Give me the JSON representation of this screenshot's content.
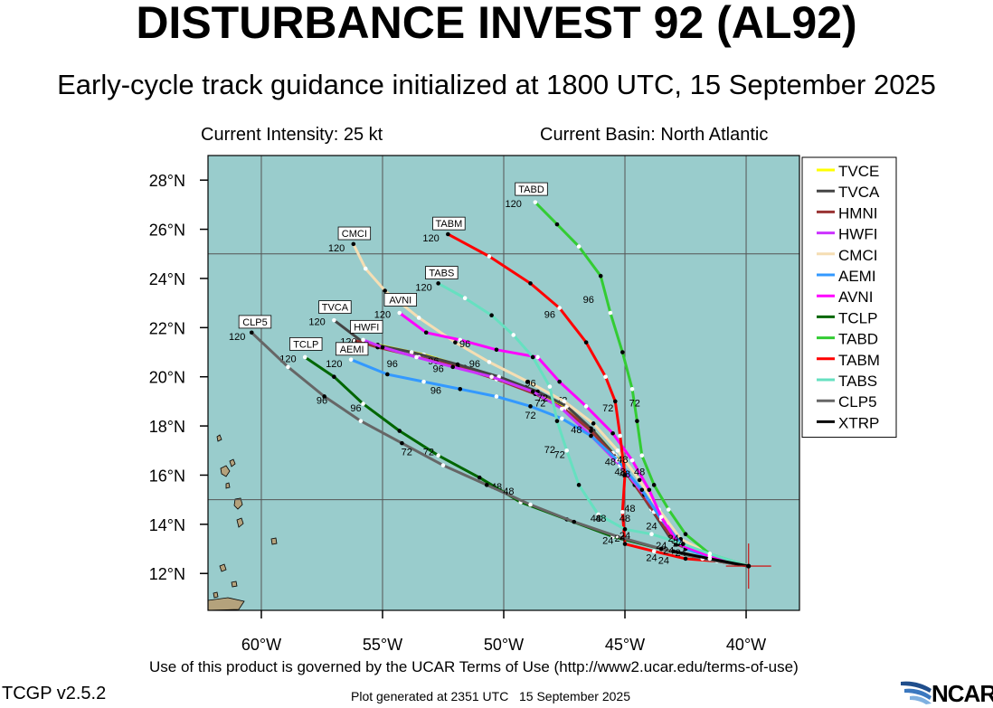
{
  "title": "DISTURBANCE INVEST 92 (AL92)",
  "subtitle": "Early-cycle track guidance initialized at 1800 UTC, 15 September 2025",
  "current_intensity": "Current Intensity: 25 kt",
  "current_basin": "Current Basin: North Atlantic",
  "terms": "Use of this product is governed by the UCAR Terms of Use (http://www2.ucar.edu/terms-of-use)",
  "version": "TCGP v2.5.2",
  "generated": "Plot generated at 2351 UTC   15 September 2025",
  "logo_text": "NCAR",
  "colors": {
    "ocean": "#99cccc",
    "land": "#b4a27c",
    "grid": "#555555",
    "initial_marker": "#cc2222"
  },
  "chart_data": {
    "type": "map-tracks",
    "lon_range": [
      -62.2,
      -37.8
    ],
    "lat_range": [
      10.5,
      29.0
    ],
    "xticks": [
      {
        "v": -60,
        "label": "60°W"
      },
      {
        "v": -55,
        "label": "55°W"
      },
      {
        "v": -50,
        "label": "50°W"
      },
      {
        "v": -45,
        "label": "45°W"
      },
      {
        "v": -40,
        "label": "40°W"
      }
    ],
    "yticks": [
      {
        "v": 12,
        "label": "12°N"
      },
      {
        "v": 14,
        "label": "14°N"
      },
      {
        "v": 16,
        "label": "16°N"
      },
      {
        "v": 18,
        "label": "18°N"
      },
      {
        "v": 20,
        "label": "20°N"
      },
      {
        "v": 22,
        "label": "22°N"
      },
      {
        "v": 24,
        "label": "24°N"
      },
      {
        "v": 26,
        "label": "26°N"
      },
      {
        "v": 28,
        "label": "28°N"
      }
    ],
    "grid_lons": [
      -60,
      -55,
      -50,
      -45,
      -40
    ],
    "grid_lats": [
      15,
      25
    ],
    "initial_position": {
      "lon": -39.9,
      "lat": 12.3
    },
    "legend_position": "top-right",
    "tracks": [
      {
        "name": "TVCE",
        "color": "#ffff00",
        "points": [
          [
            -39.9,
            12.3
          ],
          [
            -41.8,
            12.8
          ],
          [
            -43.0,
            13.3
          ],
          [
            -43.8,
            14.5
          ],
          [
            -44.6,
            15.7
          ],
          [
            -45.4,
            16.8
          ],
          [
            -46.3,
            17.8
          ],
          [
            -47.3,
            18.7
          ],
          [
            -48.4,
            19.2
          ],
          [
            -50.0,
            19.8
          ],
          [
            -51.6,
            20.4
          ],
          [
            -53.3,
            20.9
          ],
          [
            -55.2,
            21.3
          ],
          [
            -55.9,
            21.4
          ]
        ],
        "labels": [
          {
            "t": "72",
            "lon": -47.6,
            "lat": 18.9
          }
        ]
      },
      {
        "name": "TVCA",
        "color": "#444444",
        "points": [
          [
            -39.9,
            12.3
          ],
          [
            -41.9,
            12.9
          ],
          [
            -43.1,
            13.4
          ],
          [
            -43.9,
            14.6
          ],
          [
            -44.7,
            15.8
          ],
          [
            -45.5,
            16.9
          ],
          [
            -46.4,
            17.9
          ],
          [
            -47.4,
            18.8
          ],
          [
            -48.6,
            19.4
          ],
          [
            -50.2,
            20.0
          ],
          [
            -51.9,
            20.5
          ],
          [
            -53.8,
            21.0
          ],
          [
            -55.8,
            21.4
          ],
          [
            -57.0,
            22.3
          ]
        ],
        "labels": [
          {
            "t": "120",
            "lon": -57.7,
            "lat": 22.1,
            "box": "TVCA"
          }
        ]
      },
      {
        "name": "HMNI",
        "color": "#993333",
        "points": [
          [
            -39.9,
            12.3
          ],
          [
            -41.6,
            12.7
          ],
          [
            -42.9,
            13.2
          ],
          [
            -43.8,
            14.5
          ],
          [
            -44.6,
            15.6
          ],
          [
            -45.4,
            16.7
          ],
          [
            -46.4,
            17.8
          ],
          [
            -47.5,
            18.7
          ],
          [
            -48.7,
            19.3
          ],
          [
            -50.3,
            19.9
          ],
          [
            -51.9,
            20.4
          ],
          [
            -53.5,
            20.8
          ],
          [
            -55.2,
            21.2
          ],
          [
            -56.2,
            21.5
          ]
        ],
        "labels": [
          {
            "t": "96",
            "lon": -52.9,
            "lat": 20.5
          }
        ]
      },
      {
        "name": "HWFI",
        "color": "#cc33ff",
        "points": [
          [
            -39.9,
            12.3
          ],
          [
            -41.2,
            12.6
          ],
          [
            -42.4,
            13.0
          ],
          [
            -43.3,
            14.0
          ],
          [
            -44.2,
            15.2
          ],
          [
            -45.2,
            16.4
          ],
          [
            -46.4,
            17.6
          ],
          [
            -47.6,
            18.7
          ],
          [
            -48.8,
            19.4
          ],
          [
            -50.5,
            20.0
          ],
          [
            -52.1,
            20.4
          ],
          [
            -53.6,
            20.8
          ],
          [
            -55.0,
            21.2
          ],
          [
            -55.8,
            21.5
          ]
        ],
        "labels": [
          {
            "t": "120",
            "lon": -56.4,
            "lat": 21.3,
            "box": "HWFI"
          }
        ]
      },
      {
        "name": "CMCI",
        "color": "#f5deb3",
        "points": [
          [
            -39.9,
            12.3
          ],
          [
            -41.5,
            12.8
          ],
          [
            -42.7,
            13.4
          ],
          [
            -43.6,
            14.6
          ],
          [
            -44.4,
            15.8
          ],
          [
            -45.3,
            17.0
          ],
          [
            -46.3,
            18.1
          ],
          [
            -47.5,
            19.0
          ],
          [
            -49.0,
            19.8
          ],
          [
            -50.6,
            20.6
          ],
          [
            -52.0,
            21.4
          ],
          [
            -53.5,
            22.4
          ],
          [
            -54.9,
            23.5
          ],
          [
            -55.7,
            24.4
          ],
          [
            -56.2,
            25.4
          ]
        ],
        "labels": [
          {
            "t": "120",
            "lon": -56.9,
            "lat": 25.1,
            "box": "CMCI"
          }
        ]
      },
      {
        "name": "AEMI",
        "color": "#3399ff",
        "points": [
          [
            -39.9,
            12.3
          ],
          [
            -41.3,
            12.6
          ],
          [
            -42.5,
            13.0
          ],
          [
            -43.5,
            14.2
          ],
          [
            -44.3,
            15.4
          ],
          [
            -45.3,
            16.6
          ],
          [
            -46.4,
            17.6
          ],
          [
            -47.6,
            18.3
          ],
          [
            -48.9,
            18.8
          ],
          [
            -50.3,
            19.2
          ],
          [
            -51.8,
            19.5
          ],
          [
            -53.3,
            19.8
          ],
          [
            -54.8,
            20.1
          ],
          [
            -56.3,
            20.7
          ]
        ],
        "labels": [
          {
            "t": "120",
            "lon": -57.0,
            "lat": 20.4,
            "box": "AEMI"
          },
          {
            "t": "96",
            "lon": -52.8,
            "lat": 19.3
          }
        ]
      },
      {
        "name": "AVNI",
        "color": "#ff00ff",
        "points": [
          [
            -39.9,
            12.3
          ],
          [
            -41.5,
            12.7
          ],
          [
            -42.8,
            13.2
          ],
          [
            -43.5,
            14.3
          ],
          [
            -44.0,
            15.4
          ],
          [
            -44.7,
            16.6
          ],
          [
            -45.5,
            17.7
          ],
          [
            -46.6,
            18.8
          ],
          [
            -47.7,
            19.8
          ],
          [
            -48.6,
            20.8
          ],
          [
            -50.3,
            21.1
          ],
          [
            -51.8,
            21.5
          ],
          [
            -53.2,
            21.8
          ],
          [
            -54.3,
            22.6
          ]
        ],
        "labels": [
          {
            "t": "120",
            "lon": -55.0,
            "lat": 22.4,
            "box": "AVNI"
          },
          {
            "t": "96",
            "lon": -51.6,
            "lat": 21.2
          }
        ]
      },
      {
        "name": "TCLP",
        "color": "#006600",
        "points": [
          [
            -39.9,
            12.3
          ],
          [
            -41.8,
            12.6
          ],
          [
            -43.5,
            13.0
          ],
          [
            -45.5,
            13.5
          ],
          [
            -47.4,
            14.2
          ],
          [
            -49.3,
            14.9
          ],
          [
            -51.0,
            15.9
          ],
          [
            -52.7,
            16.8
          ],
          [
            -54.3,
            17.8
          ],
          [
            -55.8,
            18.9
          ],
          [
            -57.0,
            20.0
          ],
          [
            -58.2,
            20.8
          ]
        ],
        "labels": [
          {
            "t": "120",
            "lon": -58.9,
            "lat": 20.6,
            "box": "TCLP"
          },
          {
            "t": "96",
            "lon": -56.1,
            "lat": 18.6
          },
          {
            "t": "72",
            "lon": -53.1,
            "lat": 16.8
          },
          {
            "t": "48",
            "lon": -50.3,
            "lat": 15.4
          }
        ]
      },
      {
        "name": "TABD",
        "color": "#33cc33",
        "points": [
          [
            -39.9,
            12.3
          ],
          [
            -41.5,
            12.8
          ],
          [
            -42.5,
            13.6
          ],
          [
            -43.2,
            14.6
          ],
          [
            -43.8,
            15.6
          ],
          [
            -44.3,
            16.8
          ],
          [
            -44.5,
            18.2
          ],
          [
            -44.7,
            19.5
          ],
          [
            -45.1,
            21.0
          ],
          [
            -45.6,
            22.6
          ],
          [
            -46.0,
            24.1
          ],
          [
            -46.9,
            25.3
          ],
          [
            -47.8,
            26.2
          ],
          [
            -48.7,
            27.1
          ]
        ],
        "labels": [
          {
            "t": "120",
            "lon": -49.6,
            "lat": 26.9,
            "box": "TABD"
          },
          {
            "t": "96",
            "lon": -46.5,
            "lat": 23.0
          },
          {
            "t": "72",
            "lon": -44.6,
            "lat": 18.8
          }
        ]
      },
      {
        "name": "TABM",
        "color": "#ff0000",
        "points": [
          [
            -39.9,
            12.3
          ],
          [
            -41.2,
            12.5
          ],
          [
            -42.5,
            12.6
          ],
          [
            -43.8,
            12.9
          ],
          [
            -45.0,
            13.2
          ],
          [
            -45.1,
            14.5
          ],
          [
            -45.0,
            16.0
          ],
          [
            -45.2,
            17.6
          ],
          [
            -45.4,
            19.0
          ],
          [
            -45.8,
            20.0
          ],
          [
            -46.6,
            21.4
          ],
          [
            -47.7,
            22.8
          ],
          [
            -48.9,
            23.8
          ],
          [
            -50.6,
            24.9
          ],
          [
            -52.3,
            25.8
          ]
        ],
        "labels": [
          {
            "t": "120",
            "lon": -53.0,
            "lat": 25.5,
            "box": "TABM"
          },
          {
            "t": "96",
            "lon": -48.1,
            "lat": 22.4
          },
          {
            "t": "72",
            "lon": -45.7,
            "lat": 18.6
          }
        ]
      },
      {
        "name": "TABS",
        "color": "#66e0c0",
        "points": [
          [
            -39.9,
            12.3
          ],
          [
            -41.5,
            12.8
          ],
          [
            -42.6,
            13.2
          ],
          [
            -43.9,
            13.6
          ],
          [
            -45.0,
            13.8
          ],
          [
            -46.1,
            14.4
          ],
          [
            -46.9,
            15.6
          ],
          [
            -47.4,
            17.0
          ],
          [
            -47.8,
            18.2
          ],
          [
            -48.1,
            19.6
          ],
          [
            -48.8,
            20.8
          ],
          [
            -49.6,
            21.7
          ],
          [
            -50.5,
            22.5
          ],
          [
            -51.6,
            23.2
          ],
          [
            -52.7,
            23.8
          ]
        ],
        "labels": [
          {
            "t": "120",
            "lon": -53.3,
            "lat": 23.5,
            "box": "TABS"
          },
          {
            "t": "96",
            "lon": -51.2,
            "lat": 20.4
          },
          {
            "t": "72",
            "lon": -47.7,
            "lat": 16.7
          },
          {
            "t": "48",
            "lon": -46.2,
            "lat": 14.1
          }
        ]
      },
      {
        "name": "CLP5",
        "color": "#666666",
        "points": [
          [
            -39.9,
            12.3
          ],
          [
            -41.8,
            12.6
          ],
          [
            -43.5,
            13.0
          ],
          [
            -45.3,
            13.5
          ],
          [
            -47.1,
            14.1
          ],
          [
            -48.9,
            14.8
          ],
          [
            -50.7,
            15.6
          ],
          [
            -52.5,
            16.4
          ],
          [
            -54.2,
            17.3
          ],
          [
            -55.9,
            18.2
          ],
          [
            -57.4,
            19.2
          ],
          [
            -58.9,
            20.4
          ],
          [
            -60.4,
            21.8
          ]
        ],
        "labels": [
          {
            "t": "120",
            "lon": -61.0,
            "lat": 21.5,
            "box": "CLP5"
          },
          {
            "t": "96",
            "lon": -57.5,
            "lat": 18.9
          },
          {
            "t": "72",
            "lon": -54.0,
            "lat": 16.8
          },
          {
            "t": "48",
            "lon": -49.8,
            "lat": 15.2
          }
        ]
      },
      {
        "name": "XTRP",
        "color": "#000000",
        "points": [
          [
            -39.9,
            12.3
          ],
          [
            -41.5,
            12.6
          ],
          [
            -43.0,
            12.9
          ]
        ],
        "labels": []
      }
    ],
    "hour_labels": [
      {
        "t": "72",
        "lon": -48.4,
        "lat": 19.0
      },
      {
        "t": "72",
        "lon": -48.5,
        "lat": 18.8
      },
      {
        "t": "72",
        "lon": -48.9,
        "lat": 18.3
      },
      {
        "t": "96",
        "lon": -48.9,
        "lat": 19.6
      },
      {
        "t": "96",
        "lon": -54.6,
        "lat": 20.4
      },
      {
        "t": "96",
        "lon": -52.7,
        "lat": 20.2
      },
      {
        "t": "48",
        "lon": -47.0,
        "lat": 17.7
      },
      {
        "t": "72",
        "lon": -48.1,
        "lat": 16.9
      },
      {
        "t": "48",
        "lon": -45.6,
        "lat": 16.4
      },
      {
        "t": "48",
        "lon": -45.1,
        "lat": 16.5
      },
      {
        "t": "48",
        "lon": -44.4,
        "lat": 16.0
      },
      {
        "t": "48",
        "lon": -45.2,
        "lat": 16.0
      },
      {
        "t": "48",
        "lon": -45.0,
        "lat": 15.9
      },
      {
        "t": "48",
        "lon": -44.8,
        "lat": 14.5
      },
      {
        "t": "48",
        "lon": -45.0,
        "lat": 14.1
      },
      {
        "t": "48",
        "lon": -46.0,
        "lat": 14.1
      },
      {
        "t": "24",
        "lon": -45.0,
        "lat": 13.4
      },
      {
        "t": "24",
        "lon": -45.2,
        "lat": 13.3
      },
      {
        "t": "24",
        "lon": -45.7,
        "lat": 13.2
      },
      {
        "t": "24",
        "lon": -43.9,
        "lat": 13.8
      },
      {
        "t": "24",
        "lon": -43.5,
        "lat": 13.0
      },
      {
        "t": "24",
        "lon": -43.2,
        "lat": 12.8
      },
      {
        "t": "24",
        "lon": -43.0,
        "lat": 13.3
      },
      {
        "t": "24",
        "lon": -43.9,
        "lat": 12.5
      },
      {
        "t": "24",
        "lon": -43.4,
        "lat": 12.4
      },
      {
        "t": "24",
        "lon": -42.7,
        "lat": 12.7
      },
      {
        "t": "24",
        "lon": -42.8,
        "lat": 13.1
      }
    ]
  }
}
